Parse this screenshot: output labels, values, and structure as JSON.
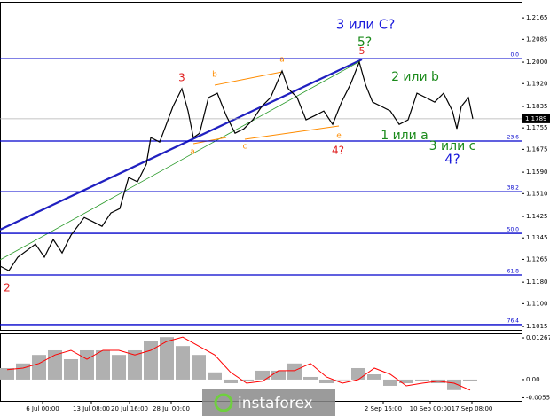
{
  "chart_data": [
    {
      "type": "line",
      "color": "#000000",
      "x": [
        0,
        10,
        20,
        40,
        50,
        60,
        70,
        80,
        95,
        105,
        115,
        125,
        135,
        145,
        155,
        165,
        170,
        180,
        195,
        205,
        212,
        218,
        225,
        235,
        245,
        255,
        265,
        275,
        285,
        295,
        305,
        318,
        325,
        335,
        345,
        355,
        365,
        375,
        385,
        395,
        405,
        412,
        420,
        430,
        440,
        450,
        460,
        470,
        480,
        490,
        500,
        510,
        515,
        520,
        528,
        533
      ],
      "values": [
        1.124,
        1.1223,
        1.1273,
        1.1322,
        1.1273,
        1.1339,
        1.1289,
        1.1355,
        1.1421,
        1.1405,
        1.1388,
        1.1438,
        1.1454,
        1.157,
        1.1554,
        1.162,
        1.1719,
        1.1702,
        1.1835,
        1.1901,
        1.1818,
        1.1719,
        1.1735,
        1.1868,
        1.1884,
        1.1801,
        1.1735,
        1.1752,
        1.1785,
        1.1835,
        1.1868,
        1.1967,
        1.1901,
        1.1868,
        1.1785,
        1.1801,
        1.1818,
        1.1768,
        1.1851,
        1.1917,
        1.2,
        1.1917,
        1.1851,
        1.1835,
        1.1818,
        1.1768,
        1.1785,
        1.1884,
        1.1868,
        1.1851,
        1.1884,
        1.1818,
        1.1752,
        1.1835,
        1.1868,
        1.1789
      ],
      "xlim": [
        0,
        588
      ],
      "ylim": [
        1.1002,
        1.2215
      ],
      "yticks": [
        1.2165,
        1.2085,
        {
          "value": 1.2,
          "label": "1.2000"
        },
        {
          "value": 1.192,
          "label": "1.1920"
        },
        1.1835,
        1.1755,
        1.1675,
        {
          "value": 1.159,
          "label": "1.1590"
        },
        {
          "value": 1.151,
          "label": "1.1510"
        },
        1.1425,
        1.1345,
        1.1265,
        {
          "value": 1.118,
          "label": "1.1180"
        },
        {
          "value": 1.11,
          "label": "1.1100"
        },
        1.1015
      ],
      "last_price": 1.1789,
      "levels": [
        {
          "value": 1.2013,
          "label": "0.0"
        },
        {
          "value": 1.1706,
          "label": "23.6"
        },
        {
          "value": 1.1517,
          "label": "38.2"
        },
        {
          "value": 1.1362,
          "label": "50.0"
        },
        {
          "value": 1.1207,
          "label": "61.8"
        },
        {
          "value": 1.1022,
          "label": "76.4"
        }
      ],
      "level_color": "#0000cc",
      "annotations": [
        {
          "text": "3 или C?",
          "color": "#1a1adb"
        },
        {
          "text": "5?",
          "color": "#1a8a1a"
        },
        {
          "text": "5",
          "color": "#e02020"
        },
        {
          "text": "3",
          "color": "#e02020"
        },
        {
          "text": "b",
          "color": "#ff8c00"
        },
        {
          "text": "a",
          "color": "#ff8c00"
        },
        {
          "text": "a",
          "color": "#ff8c00"
        },
        {
          "text": "c",
          "color": "#ff8c00"
        },
        {
          "text": "e",
          "color": "#ff8c00"
        },
        {
          "text": "4?",
          "color": "#e02020"
        },
        {
          "text": "2 или b",
          "color": "#1a8a1a"
        },
        {
          "text": "1 или a",
          "color": "#1a8a1a"
        },
        {
          "text": "3 или с",
          "color": "#1a8a1a"
        },
        {
          "text": "4?",
          "color": "#1a1adb"
        },
        {
          "text": "2",
          "color": "#e02020"
        }
      ]
    },
    {
      "type": "bar",
      "color": "#b0b0b0",
      "x": [
        0,
        18,
        36,
        54,
        72,
        90,
        108,
        126,
        144,
        162,
        180,
        198,
        216,
        234,
        252,
        270,
        288,
        306,
        324,
        342,
        360,
        378,
        396,
        414,
        432,
        450,
        468,
        486,
        504,
        522
      ],
      "values": [
        0.0035,
        0.0049,
        0.0075,
        0.0089,
        0.0062,
        0.0089,
        0.0089,
        0.0075,
        0.0089,
        0.0116,
        0.0129,
        0.0102,
        0.0075,
        0.0022,
        -0.0011,
        -0.0005,
        0.0027,
        0.0027,
        0.0049,
        0.0008,
        -0.0011,
        0,
        0.0035,
        0.0016,
        -0.0019,
        -0.0011,
        -0.0005,
        -0.0011,
        -0.0032,
        -0.0005
      ],
      "signal": {
        "color": "#ff0000",
        "values": [
          0.003,
          0.0035,
          0.0049,
          0.0075,
          0.0089,
          0.0062,
          0.0089,
          0.0089,
          0.0075,
          0.0089,
          0.0116,
          0.0129,
          0.0102,
          0.0075,
          0.0022,
          -0.0011,
          -0.0005,
          0.0027,
          0.0027,
          0.0049,
          0.0008,
          -0.0011,
          0,
          0.0035,
          0.0016,
          -0.0019,
          -0.0011,
          -0.0005,
          -0.0011,
          -0.0032
        ]
      },
      "xlim": [
        0,
        588
      ],
      "ylim": [
        -0.0065,
        0.0143
      ],
      "yticks": [
        0.01267,
        {
          "value": 0,
          "label": "0.00"
        },
        -0.00554
      ],
      "xticks": [
        {
          "value": 48,
          "label": "6 Jul 00:00"
        },
        {
          "value": 103,
          "label": "13 Jul 08:00"
        },
        {
          "value": 146,
          "label": "20 Jul 16:00"
        },
        {
          "value": 193,
          "label": "28 Jul 00:00"
        },
        {
          "value": 432,
          "label": "2 Sep 16:00"
        },
        {
          "value": 485,
          "label": "10 Sep 00:00"
        },
        {
          "value": 532,
          "label": "17 Sep 08:00"
        }
      ]
    }
  ],
  "watermark": "instaforex"
}
